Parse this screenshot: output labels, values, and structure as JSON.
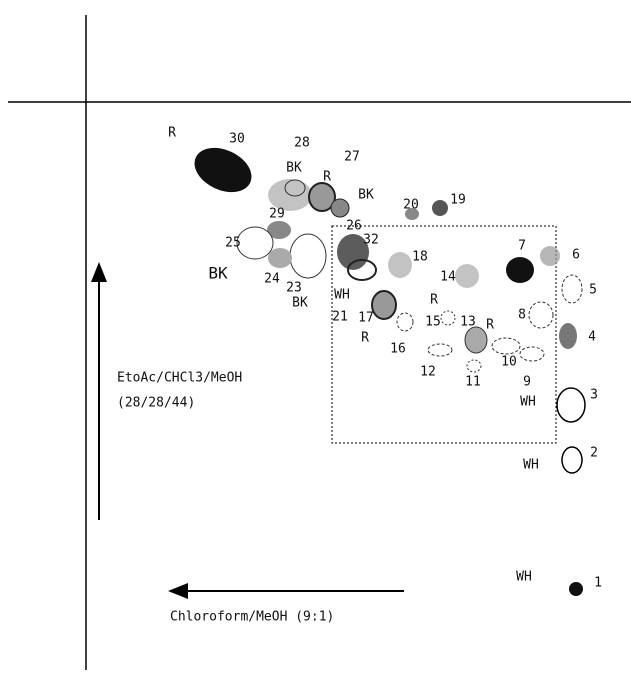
{
  "spot_labels": [
    "R",
    "30",
    "28",
    "BK",
    "R",
    "27",
    "BK",
    "29",
    "20",
    "19",
    "25",
    "26",
    "32",
    "18",
    "7",
    "6",
    "5",
    "BK",
    "24",
    "23",
    "BK",
    "WH",
    "14",
    "R",
    "8",
    "4",
    "21",
    "17",
    "R",
    "15",
    "13",
    "R",
    "16",
    "12",
    "10",
    "11",
    "9",
    "WH",
    "3",
    "WH",
    "2",
    "WH",
    "1"
  ],
  "solvents": {
    "vertical": [
      "EtoAc/CHCl3/MeOH",
      "(28/28/44)"
    ],
    "horizontal": "Chloroform/MeOH (9:1)"
  }
}
